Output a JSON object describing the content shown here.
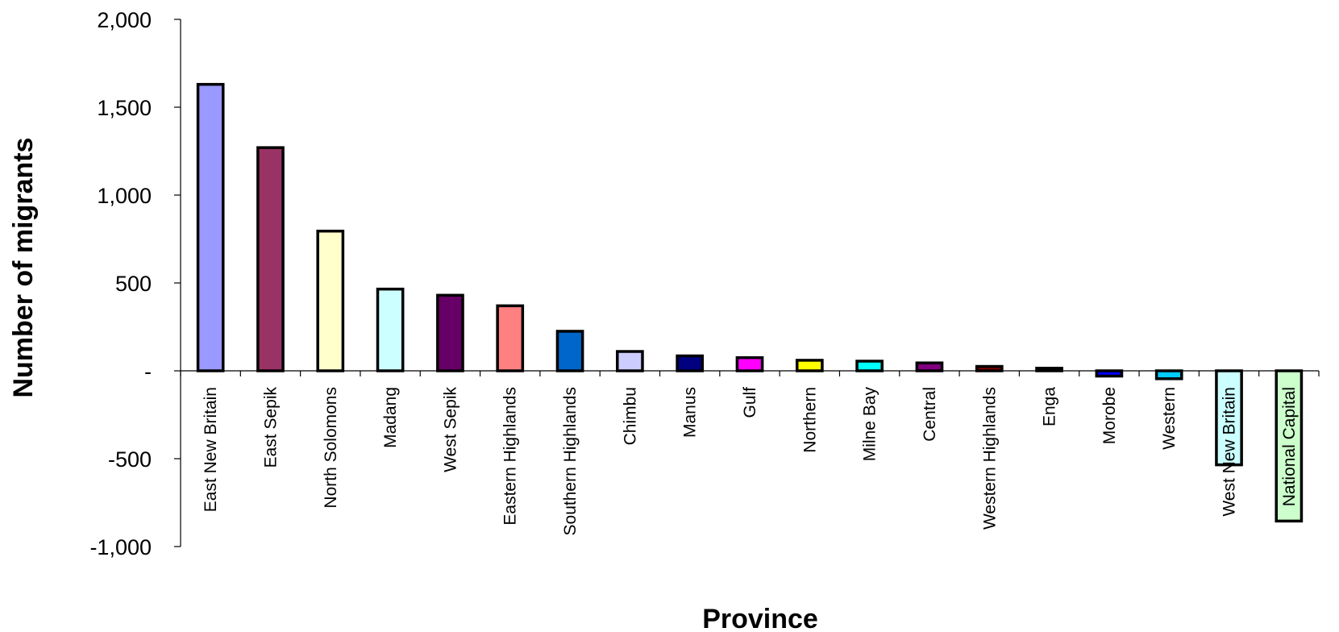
{
  "chart_data": {
    "type": "bar",
    "title": "",
    "xlabel": "Province",
    "ylabel": "Number of migrants",
    "ylim": [
      -1000,
      2000
    ],
    "yticks": [
      {
        "value": 2000,
        "label": "2,000"
      },
      {
        "value": 1500,
        "label": "1,500"
      },
      {
        "value": 1000,
        "label": "1,000"
      },
      {
        "value": 500,
        "label": "500"
      },
      {
        "value": 0,
        "label": "-"
      },
      {
        "value": -500,
        "label": "-500"
      },
      {
        "value": -1000,
        "label": "-1,000"
      }
    ],
    "grid": false,
    "legend": "none",
    "categories": [
      "East New Britain",
      "East Sepik",
      "North Solomons",
      "Madang",
      "West Sepik",
      "Eastern Highlands",
      "Southern Highlands",
      "Chimbu",
      "Manus",
      "Gulf",
      "Northern",
      "Milne Bay",
      "Central",
      "Western Highlands",
      "Enga",
      "Morobe",
      "Western",
      "West New Britain",
      "National Capital"
    ],
    "values": [
      1630,
      1270,
      795,
      465,
      430,
      370,
      225,
      110,
      85,
      75,
      60,
      55,
      45,
      25,
      15,
      -30,
      -45,
      -535,
      -855
    ],
    "colors": [
      "#9999ff",
      "#993366",
      "#ffffcc",
      "#ccffff",
      "#660066",
      "#ff8080",
      "#0066cc",
      "#ccccff",
      "#000080",
      "#ff00ff",
      "#ffff00",
      "#00ffff",
      "#800080",
      "#800000",
      "#008080",
      "#0000ff",
      "#00ccff",
      "#ccffff",
      "#ccffcc"
    ]
  }
}
